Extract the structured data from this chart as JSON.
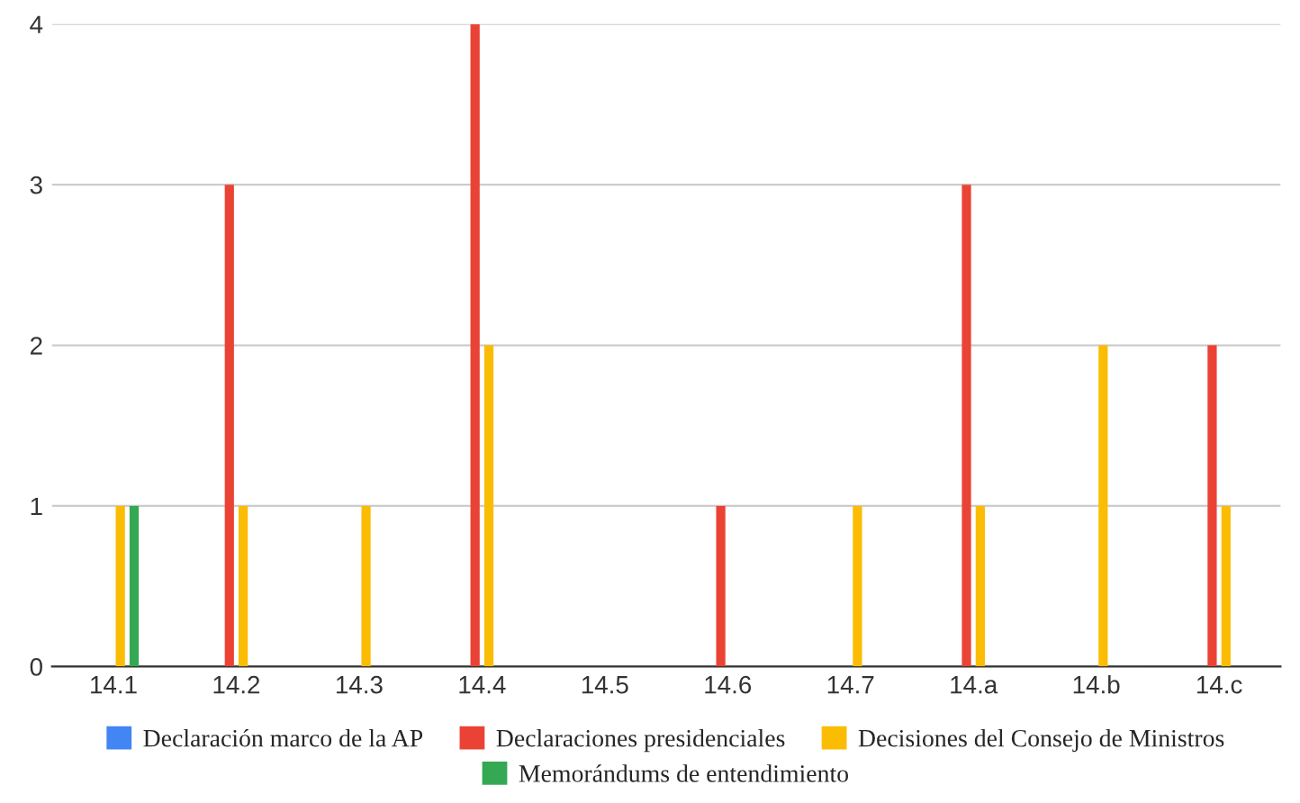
{
  "chart_data": {
    "type": "bar",
    "categories": [
      "14.1",
      "14.2",
      "14.3",
      "14.4",
      "14.5",
      "14.6",
      "14.7",
      "14.a",
      "14.b",
      "14.c"
    ],
    "series": [
      {
        "name": "Declaración marco de la AP",
        "color": "#4285f4",
        "values": [
          0,
          0,
          0,
          0,
          0,
          0,
          0,
          0,
          0,
          0
        ]
      },
      {
        "name": "Declaraciones presidenciales",
        "color": "#ea4335",
        "values": [
          0,
          3,
          0,
          4,
          0,
          1,
          0,
          3,
          0,
          2
        ]
      },
      {
        "name": "Decisiones del Consejo de Ministros",
        "color": "#fbbc04",
        "values": [
          1,
          1,
          1,
          2,
          0,
          0,
          1,
          1,
          2,
          1
        ]
      },
      {
        "name": "Memorándums de entendimiento",
        "color": "#34a853",
        "values": [
          1,
          0,
          0,
          0,
          0,
          0,
          0,
          0,
          0,
          0
        ]
      }
    ],
    "ylim": [
      0,
      4
    ],
    "yticks": [
      0,
      1,
      2,
      3,
      4
    ],
    "grid": "y",
    "legend": "bottom"
  }
}
